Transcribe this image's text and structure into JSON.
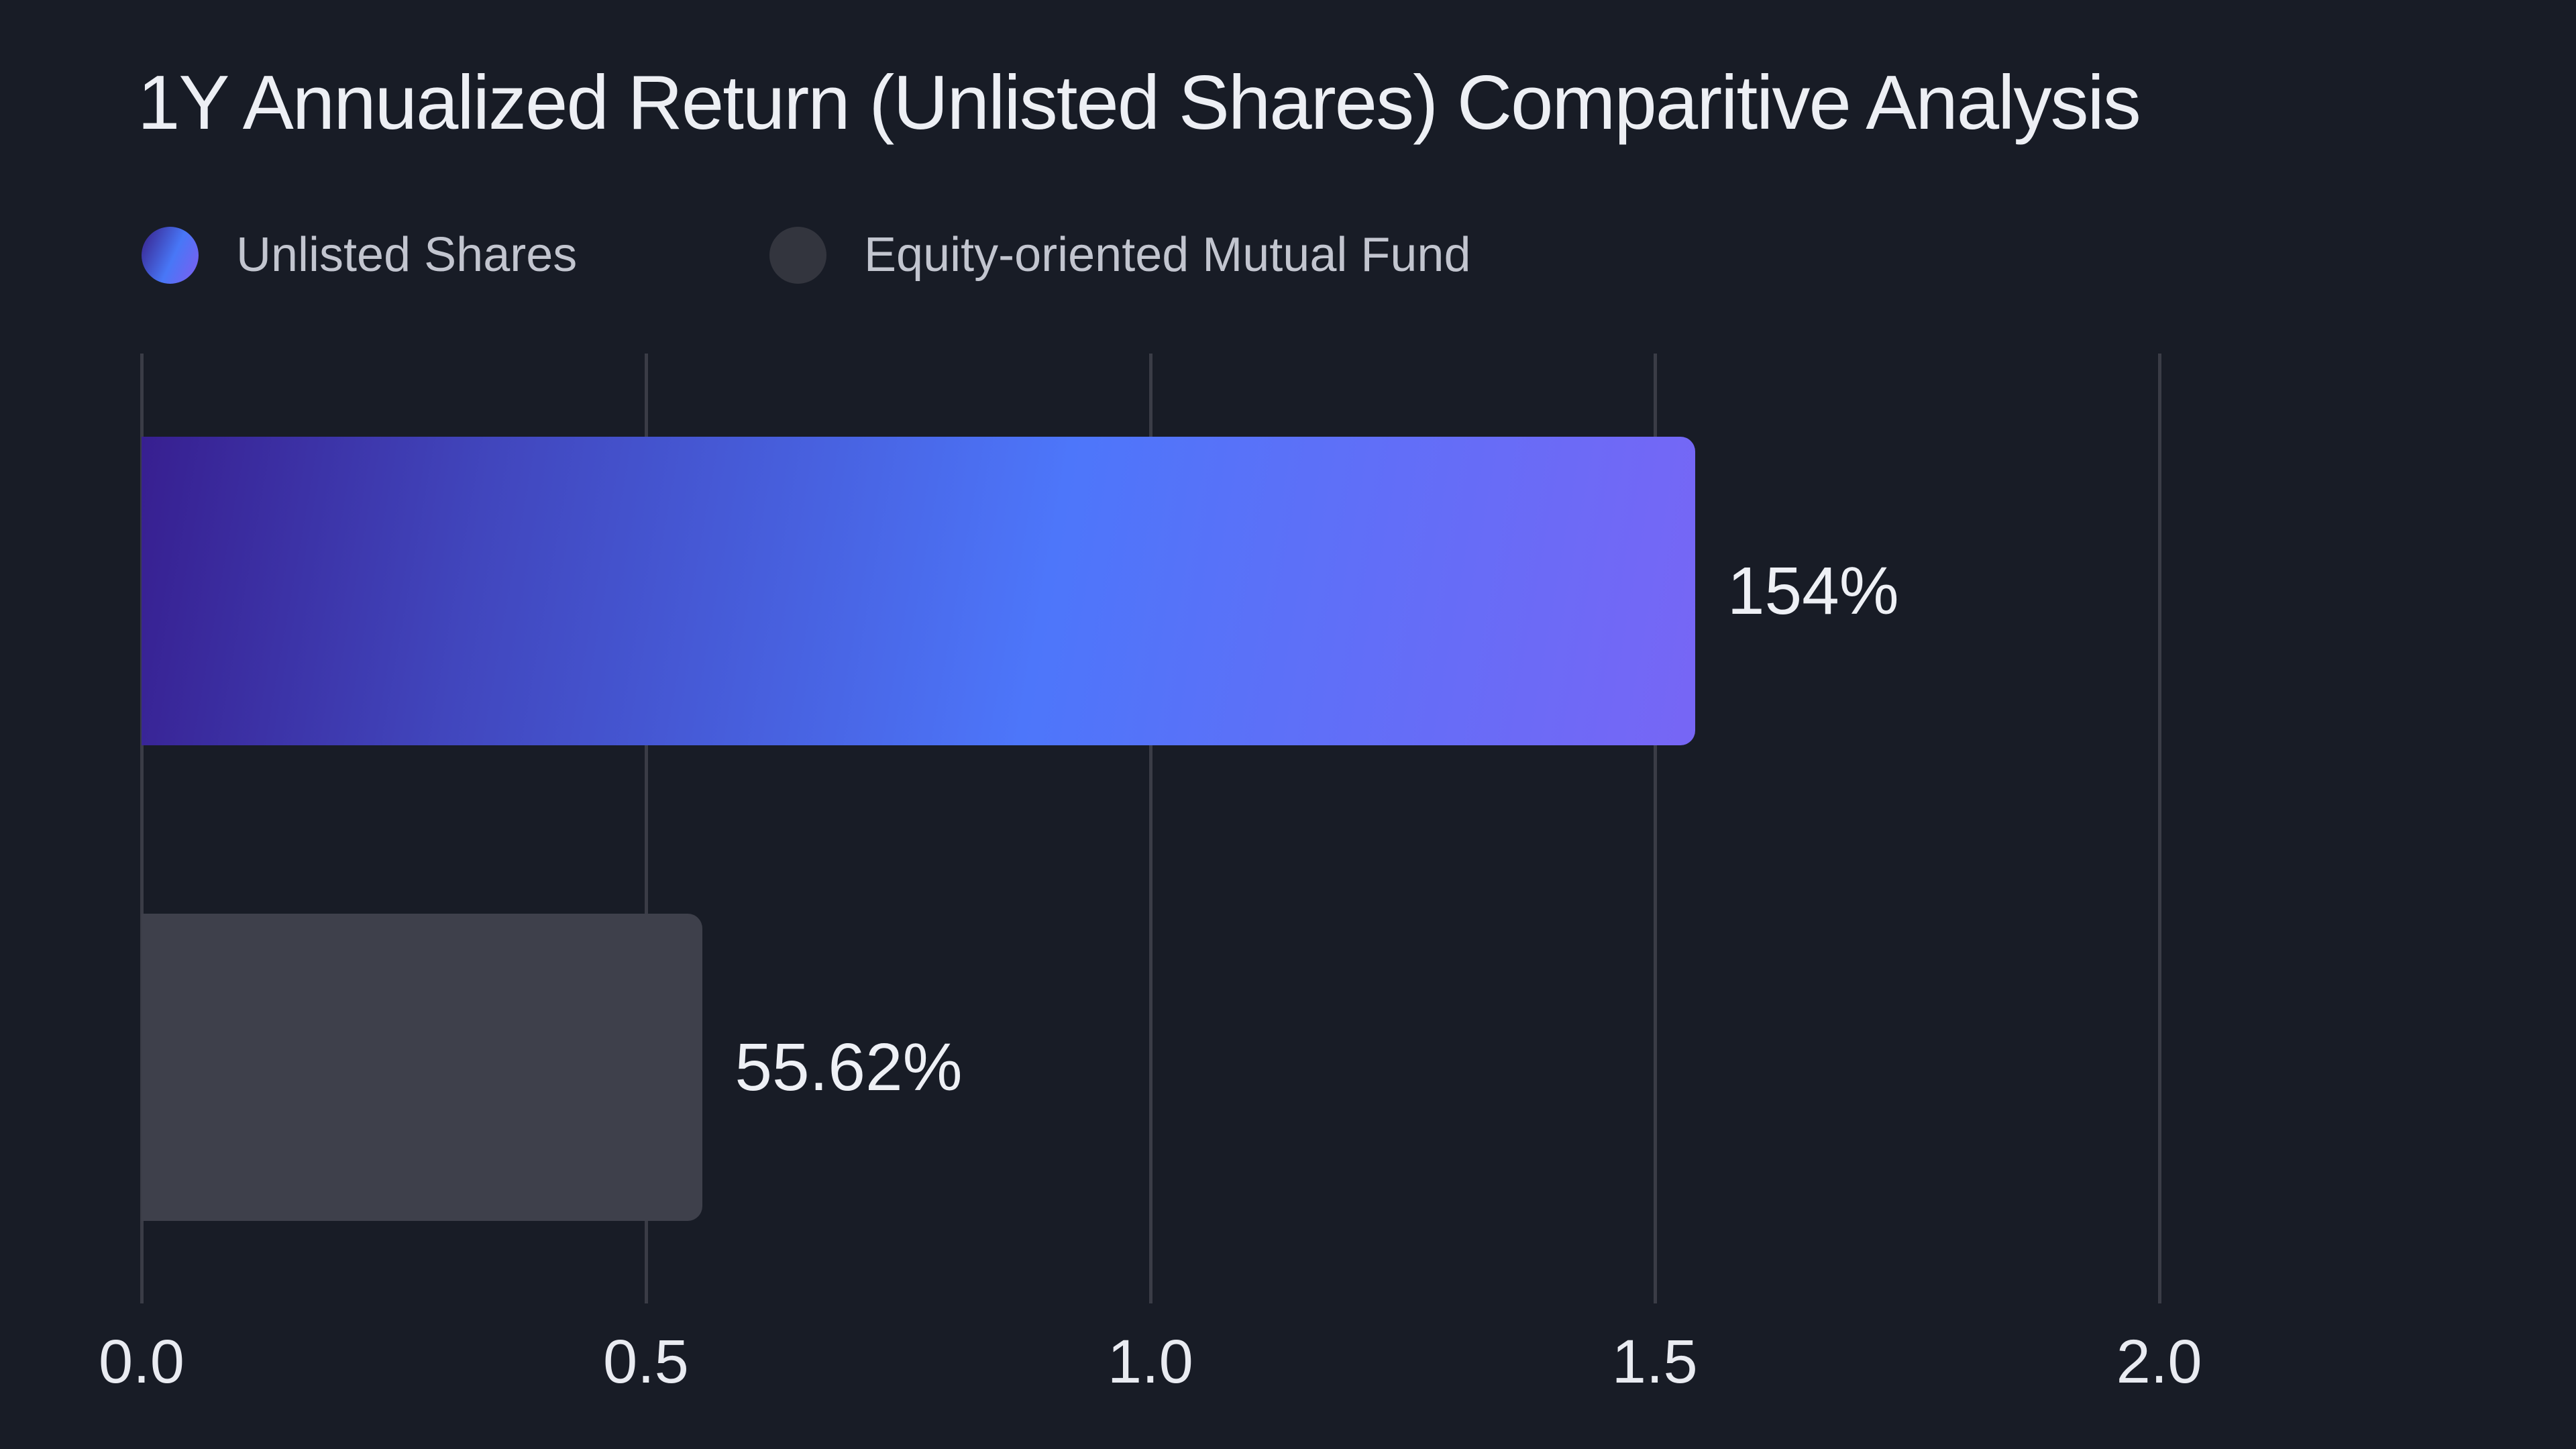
{
  "page": {
    "background_color": "#181c26"
  },
  "chart_data": {
    "type": "bar",
    "orientation": "horizontal",
    "title": "1Y Annualized Return (Unlisted Shares) Comparitive Analysis",
    "categories": [
      "Unlisted Shares",
      "Equity-oriented Mutual Fund"
    ],
    "series": [
      {
        "name": "Unlisted Shares",
        "value": 1.54,
        "label": "154%",
        "style": "gradient",
        "colors": [
          "#371f90",
          "#4d76fa",
          "#7766f5"
        ]
      },
      {
        "name": "Equity-oriented Mutual Fund",
        "value": 0.5562,
        "label": "55.62%",
        "style": "solid",
        "colors": [
          "#3e404b"
        ]
      }
    ],
    "x_ticks": [
      {
        "label": "0.0",
        "value": 0.0
      },
      {
        "label": "0.5",
        "value": 0.5
      },
      {
        "label": "1.0",
        "value": 1.0
      },
      {
        "label": "1.5",
        "value": 1.5
      },
      {
        "label": "2.0",
        "value": 2.0
      }
    ],
    "x_max": 2.37,
    "grid": "vertical",
    "legend": [
      {
        "label": "Unlisted Shares",
        "swatch": "gradient"
      },
      {
        "label": "Equity-oriented Mutual Fund",
        "swatch": "#33353e"
      }
    ],
    "colors": {
      "grid": "#3a3c46",
      "title_text": "#edeff4",
      "legend_text": "#c2c5cf",
      "tick_text": "#e9ebf1",
      "value_text": "#eef0f5"
    }
  }
}
